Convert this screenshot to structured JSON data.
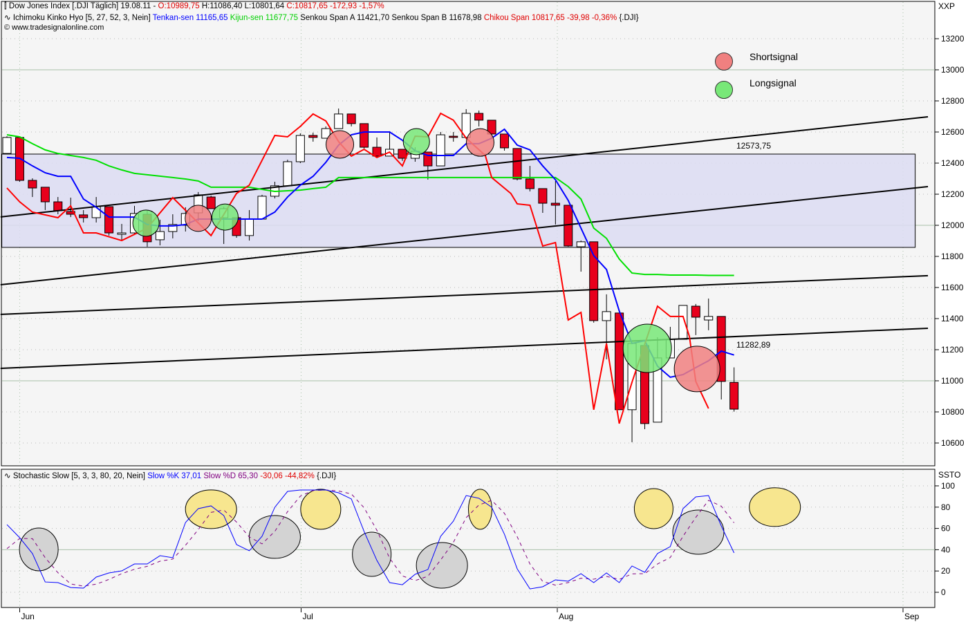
{
  "header": {
    "line1": {
      "icon": "candlestick-icon",
      "symbol": "Dow Jones Index [.DJI  Täglich] 19.08.11 -",
      "open": "O:10989,75",
      "hl": "H:11086,40 L:10801,64",
      "close": "C:10817,65 -172,93 -1,57%"
    },
    "line2": {
      "icon": "indicator-icon",
      "name": "Ichimoku Kinko Hyo [5, 27, 52, 3, Nein]",
      "tenkan": "Tenkan-sen 11165,65",
      "kijun": "Kijun-sen 11677,75",
      "senkou": "Senkou Span A 11421,70 Senkou Span B 11678,98",
      "chikou": "Chikou Span 10817,65 -39,98 -0,36%",
      "suffix": "{.DJI}"
    },
    "line3": {
      "icon": "copyright-icon",
      "text": "www.tradesignalonline.com"
    },
    "stoch": {
      "icon": "indicator-icon",
      "name": "Stochastic Slow [5, 3, 3, 80, 20, Nein]",
      "k": "Slow %K 37,01",
      "d": "Slow %D 65,30",
      "change": "-30,06 -44,82%",
      "suffix": "{.DJI}"
    }
  },
  "colors": {
    "up": "#ffffff",
    "down": "#e8001c",
    "tenkan": "#0000ff",
    "kijun": "#00e000",
    "chikou": "#ff0000",
    "k": "#0000ff",
    "d": "#800080",
    "short": "#f08080",
    "long": "#78e878",
    "stoch_high": "#f7e68f",
    "stoch_low": "#d3d3d3",
    "box": "#dcdcf2",
    "background": "#f5f5f5"
  },
  "legend": [
    {
      "label": "Shortsignal",
      "color": "#f08080"
    },
    {
      "label": "Longsignal",
      "color": "#78e878"
    }
  ],
  "chart_data": [
    {
      "type": "candlestick",
      "axis_label": "XXP",
      "ylim": [
        10480,
        13420
      ],
      "yticks": [
        13200,
        13000,
        12800,
        12600,
        12400,
        12200,
        12000,
        11800,
        11600,
        11400,
        11200,
        11000,
        10800,
        10600
      ],
      "xticks": [
        "Jun",
        "Jul",
        "Aug",
        "Sep"
      ],
      "candles": [
        [
          12462,
          12573,
          12462,
          12565
        ],
        [
          12565,
          12573,
          12280,
          12289
        ],
        [
          12289,
          12302,
          12182,
          12240
        ],
        [
          12245,
          12245,
          12098,
          12151
        ],
        [
          12151,
          12182,
          12071,
          12094
        ],
        [
          12089,
          12178,
          12053,
          12071
        ],
        [
          12067,
          12098,
          12018,
          12049
        ],
        [
          12049,
          12182,
          12018,
          12120
        ],
        [
          12120,
          12120,
          11934,
          11951
        ],
        [
          11942,
          12009,
          11902,
          11951
        ],
        [
          11951,
          12125,
          11942,
          12076
        ],
        [
          12071,
          12098,
          11862,
          11894
        ],
        [
          11907,
          12036,
          11871,
          11960
        ],
        [
          11960,
          12071,
          11916,
          12005
        ],
        [
          12000,
          12116,
          11960,
          12076
        ],
        [
          12080,
          12214,
          12027,
          12196
        ],
        [
          12182,
          12191,
          12107,
          12107
        ],
        [
          12049,
          12120,
          11880,
          12107
        ],
        [
          12049,
          12049,
          11920,
          11934
        ],
        [
          11934,
          12098,
          11902,
          12040
        ],
        [
          12040,
          12196,
          12040,
          12187
        ],
        [
          12187,
          12280,
          12173,
          12254
        ],
        [
          12254,
          12422,
          12254,
          12409
        ],
        [
          12409,
          12591,
          12400,
          12578
        ],
        [
          12578,
          12596,
          12538,
          12565
        ],
        [
          12560,
          12636,
          12560,
          12622
        ],
        [
          12622,
          12751,
          12622,
          12716
        ],
        [
          12716,
          12716,
          12636,
          12654
        ],
        [
          12654,
          12654,
          12494,
          12502
        ],
        [
          12502,
          12565,
          12436,
          12445
        ],
        [
          12445,
          12605,
          12445,
          12489
        ],
        [
          12489,
          12489,
          12414,
          12431
        ],
        [
          12431,
          12502,
          12409,
          12476
        ],
        [
          12471,
          12471,
          12294,
          12382
        ],
        [
          12382,
          12600,
          12382,
          12582
        ],
        [
          12573,
          12600,
          12538,
          12565
        ],
        [
          12565,
          12747,
          12565,
          12720
        ],
        [
          12720,
          12738,
          12636,
          12676
        ],
        [
          12676,
          12676,
          12560,
          12587
        ],
        [
          12587,
          12587,
          12480,
          12498
        ],
        [
          12494,
          12494,
          12289,
          12298
        ],
        [
          12298,
          12382,
          12218,
          12236
        ],
        [
          12236,
          12236,
          12080,
          12142
        ],
        [
          12142,
          12285,
          12005,
          12129
        ],
        [
          12129,
          12129,
          11862,
          11867
        ],
        [
          11862,
          11902,
          11702,
          11894
        ],
        [
          11894,
          11894,
          11374,
          11387
        ],
        [
          11387,
          11556,
          11138,
          11445
        ],
        [
          11436,
          11436,
          10814,
          10814
        ],
        [
          10814,
          11240,
          10605,
          11240
        ],
        [
          11227,
          11227,
          10689,
          10725
        ],
        [
          10734,
          11280,
          10734,
          11147
        ],
        [
          11147,
          11347,
          11147,
          11267
        ],
        [
          11267,
          11485,
          11267,
          11485
        ],
        [
          11480,
          11494,
          11294,
          11409
        ],
        [
          11391,
          11529,
          11325,
          11414
        ],
        [
          11414,
          11414,
          10880,
          10996
        ],
        [
          10989.75,
          11086.4,
          10801.64,
          10817.65
        ]
      ],
      "series": [
        {
          "name": "Tenkan-sen",
          "values": [
            12436,
            12431,
            12382,
            12338,
            12315,
            12315,
            12169,
            12116,
            12053,
            12053,
            12053,
            12005,
            11996,
            11996,
            12005,
            12040,
            12040,
            12040,
            12040,
            12040,
            12040,
            12085,
            12182,
            12258,
            12315,
            12405,
            12516,
            12582,
            12600,
            12600,
            12600,
            12547,
            12480,
            12449,
            12449,
            12449,
            12525,
            12525,
            12560,
            12618,
            12516,
            12485,
            12382,
            12293,
            12160,
            11982,
            11805,
            11716,
            11449,
            11240,
            11258,
            11094,
            11023,
            11040,
            11085,
            11129,
            11191,
            11165.65
          ]
        },
        {
          "name": "Kijun-sen",
          "values": [
            12582,
            12569,
            12525,
            12485,
            12462,
            12449,
            12436,
            12418,
            12382,
            12356,
            12334,
            12325,
            12316,
            12307,
            12298,
            12285,
            12245,
            12245,
            12245,
            12245,
            12231,
            12218,
            12222,
            12226,
            12236,
            12245,
            12307,
            12307,
            12307,
            12307,
            12307,
            12307,
            12307,
            12307,
            12307,
            12307,
            12307,
            12307,
            12307,
            12307,
            12307,
            12307,
            12307,
            12307,
            12249,
            12169,
            11982,
            11916,
            11783,
            11693,
            11684,
            11684,
            11680,
            11680,
            11680,
            11678,
            11678,
            11677.75
          ]
        },
        {
          "name": "Chikou Span",
          "points": [
            [
              0,
              12240
            ],
            [
              1,
              12151
            ],
            [
              2,
              12085
            ],
            [
              4,
              12049
            ],
            [
              5,
              12125
            ],
            [
              6,
              11951
            ],
            [
              7,
              11951
            ],
            [
              9,
              11902
            ],
            [
              11,
              11982
            ],
            [
              13,
              12178
            ],
            [
              16,
              11934
            ],
            [
              18,
              12205
            ],
            [
              19,
              12258
            ],
            [
              21,
              12578
            ],
            [
              22,
              12569
            ],
            [
              23,
              12636
            ],
            [
              24,
              12716
            ],
            [
              25,
              12671
            ],
            [
              26,
              12538
            ],
            [
              27,
              12445
            ],
            [
              28,
              12489
            ],
            [
              29,
              12436
            ],
            [
              30,
              12471
            ],
            [
              31,
              12382
            ],
            [
              32,
              12573
            ],
            [
              33,
              12569
            ],
            [
              34,
              12720
            ],
            [
              35,
              12676
            ],
            [
              36,
              12560
            ],
            [
              37.5,
              12449
            ],
            [
              38,
              12307
            ],
            [
              39.5,
              12205
            ],
            [
              40,
              12138
            ],
            [
              41,
              12129
            ],
            [
              42,
              11867
            ],
            [
              43,
              11889
            ],
            [
              44,
              11391
            ],
            [
              45,
              11440
            ],
            [
              46,
              10814
            ],
            [
              47,
              11240
            ],
            [
              48,
              10725
            ],
            [
              49,
              10991
            ],
            [
              51,
              11480
            ],
            [
              52,
              11414
            ],
            [
              53,
              11414
            ],
            [
              53.5,
              11285
            ],
            [
              54,
              10996
            ],
            [
              55,
              10822
            ]
          ]
        }
      ],
      "trendlines": [
        {
          "from": [
            -0.5,
            12054
          ],
          "to": [
            72.2,
            12698
          ],
          "label": "12573,75"
        },
        {
          "from": [
            -0.5,
            11618
          ],
          "to": [
            72.2,
            12249
          ]
        },
        {
          "from": [
            -0.5,
            11427
          ],
          "to": [
            72.2,
            11676
          ]
        },
        {
          "from": [
            -0.5,
            11080
          ],
          "to": [
            72.2,
            11338
          ],
          "label": "11282,89"
        }
      ],
      "range_box": {
        "from_bar": -0.4,
        "to_bar": 71.2,
        "high": 12458,
        "low": 11858
      },
      "signals": [
        {
          "type": "short",
          "bar": 26.1,
          "price": 12520
        },
        {
          "type": "long",
          "bar": 32.1,
          "price": 12538
        },
        {
          "type": "short",
          "bar": 37.1,
          "price": 12533
        },
        {
          "type": "short",
          "bar": 15,
          "price": 12045
        },
        {
          "type": "long",
          "bar": 10.9,
          "price": 12014
        },
        {
          "type": "long",
          "bar": 17.1,
          "price": 12053
        },
        {
          "type": "long",
          "bar": 50.2,
          "price": 11209
        },
        {
          "type": "short",
          "bar": 54.1,
          "price": 11076
        }
      ]
    },
    {
      "type": "line",
      "axis_label": "SSTO",
      "ylim": [
        -14,
        115
      ],
      "yticks": [
        100,
        80,
        60,
        40,
        20,
        0
      ],
      "series": [
        {
          "name": "Slow %K",
          "values": [
            63.6,
            51.3,
            36.4,
            9.7,
            9.1,
            4.5,
            3.9,
            14.3,
            18.2,
            20.1,
            26.6,
            26.6,
            34.4,
            32.5,
            65.6,
            78.6,
            81.2,
            72.1,
            44.8,
            39,
            52.6,
            79.9,
            94.8,
            96.1,
            96.1,
            96.1,
            93.5,
            87.7,
            57.1,
            30,
            9.1,
            7.1,
            16.9,
            21.4,
            52.6,
            66.9,
            90.9,
            88.3,
            79.9,
            54.5,
            22.1,
            3.2,
            5.2,
            11.7,
            10.4,
            17.5,
            9.1,
            18.2,
            9.1,
            24.7,
            18.8,
            36.4,
            42.9,
            78.6,
            89.6,
            90.9,
            62.3,
            37.01
          ]
        },
        {
          "name": "Slow %D",
          "values": [
            41,
            50.6,
            50.4,
            32.5,
            18.4,
            7.8,
            5.8,
            7.6,
            12.1,
            17.5,
            21.6,
            24.4,
            29.2,
            31.2,
            44.2,
            58.9,
            75.1,
            77.3,
            66,
            52,
            45.5,
            57.2,
            75.8,
            90.3,
            95.7,
            96.1,
            95.2,
            92.4,
            79.4,
            58.3,
            32.1,
            15.4,
            11,
            15.1,
            30.3,
            47,
            70.1,
            82,
            86.4,
            74.2,
            52.2,
            26.6,
            10.2,
            6.7,
            9.1,
            13.2,
            12.3,
            14.9,
            12.1,
            17.3,
            17.5,
            26.6,
            32.7,
            52.6,
            70.4,
            86.4,
            80.9,
            65.3
          ]
        }
      ],
      "signals": [
        {
          "type": "high",
          "bar": 16,
          "value": 78
        },
        {
          "type": "high",
          "bar": 24.6,
          "value": 78
        },
        {
          "type": "high",
          "bar": 37.1,
          "value": 78
        },
        {
          "type": "high",
          "bar": 50.7,
          "value": 78.6
        },
        {
          "type": "high",
          "bar": 60.2,
          "value": 80
        },
        {
          "type": "low",
          "bar": 2.5,
          "value": 40.3
        },
        {
          "type": "low",
          "bar": 21,
          "value": 52
        },
        {
          "type": "low",
          "bar": 28.6,
          "value": 35.7
        },
        {
          "type": "low",
          "bar": 34.1,
          "value": 25.3
        },
        {
          "type": "low",
          "bar": 54.2,
          "value": 56.5
        }
      ],
      "reference_line": 40
    }
  ]
}
